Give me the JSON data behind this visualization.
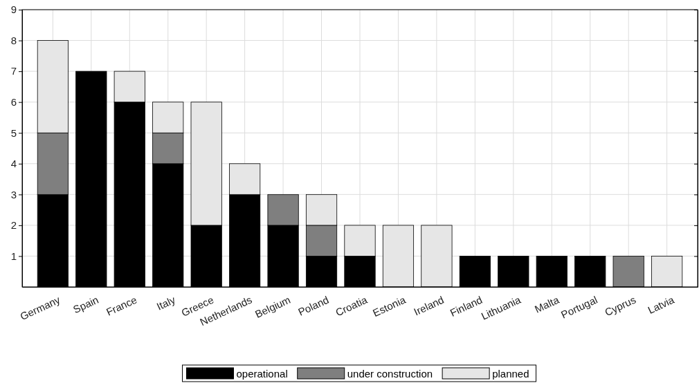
{
  "chart_data": {
    "type": "bar",
    "stacked": true,
    "categories": [
      "Germany",
      "Spain",
      "France",
      "Italy",
      "Greece",
      "Netherlands",
      "Belgium",
      "Poland",
      "Croatia",
      "Estonia",
      "Ireland",
      "Finland",
      "Lithuania",
      "Malta",
      "Portugal",
      "Cyprus",
      "Latvia"
    ],
    "series": [
      {
        "name": "operational",
        "color": "#000000",
        "values": [
          3,
          7,
          6,
          4,
          2,
          3,
          2,
          1,
          1,
          0,
          0,
          1,
          1,
          1,
          1,
          0,
          0
        ]
      },
      {
        "name": "under construction",
        "color": "#7f7f7f",
        "values": [
          2,
          0,
          0,
          1,
          0,
          0,
          1,
          1,
          0,
          0,
          0,
          0,
          0,
          0,
          0,
          1,
          0
        ]
      },
      {
        "name": "planned",
        "color": "#e6e6e6",
        "values": [
          3,
          0,
          1,
          1,
          4,
          1,
          0,
          1,
          1,
          2,
          2,
          0,
          0,
          0,
          0,
          0,
          1
        ]
      }
    ],
    "ylim": [
      0,
      9
    ],
    "yticks": [
      1,
      2,
      3,
      4,
      5,
      6,
      7,
      8,
      9
    ],
    "grid": true,
    "legend": "bottom"
  }
}
